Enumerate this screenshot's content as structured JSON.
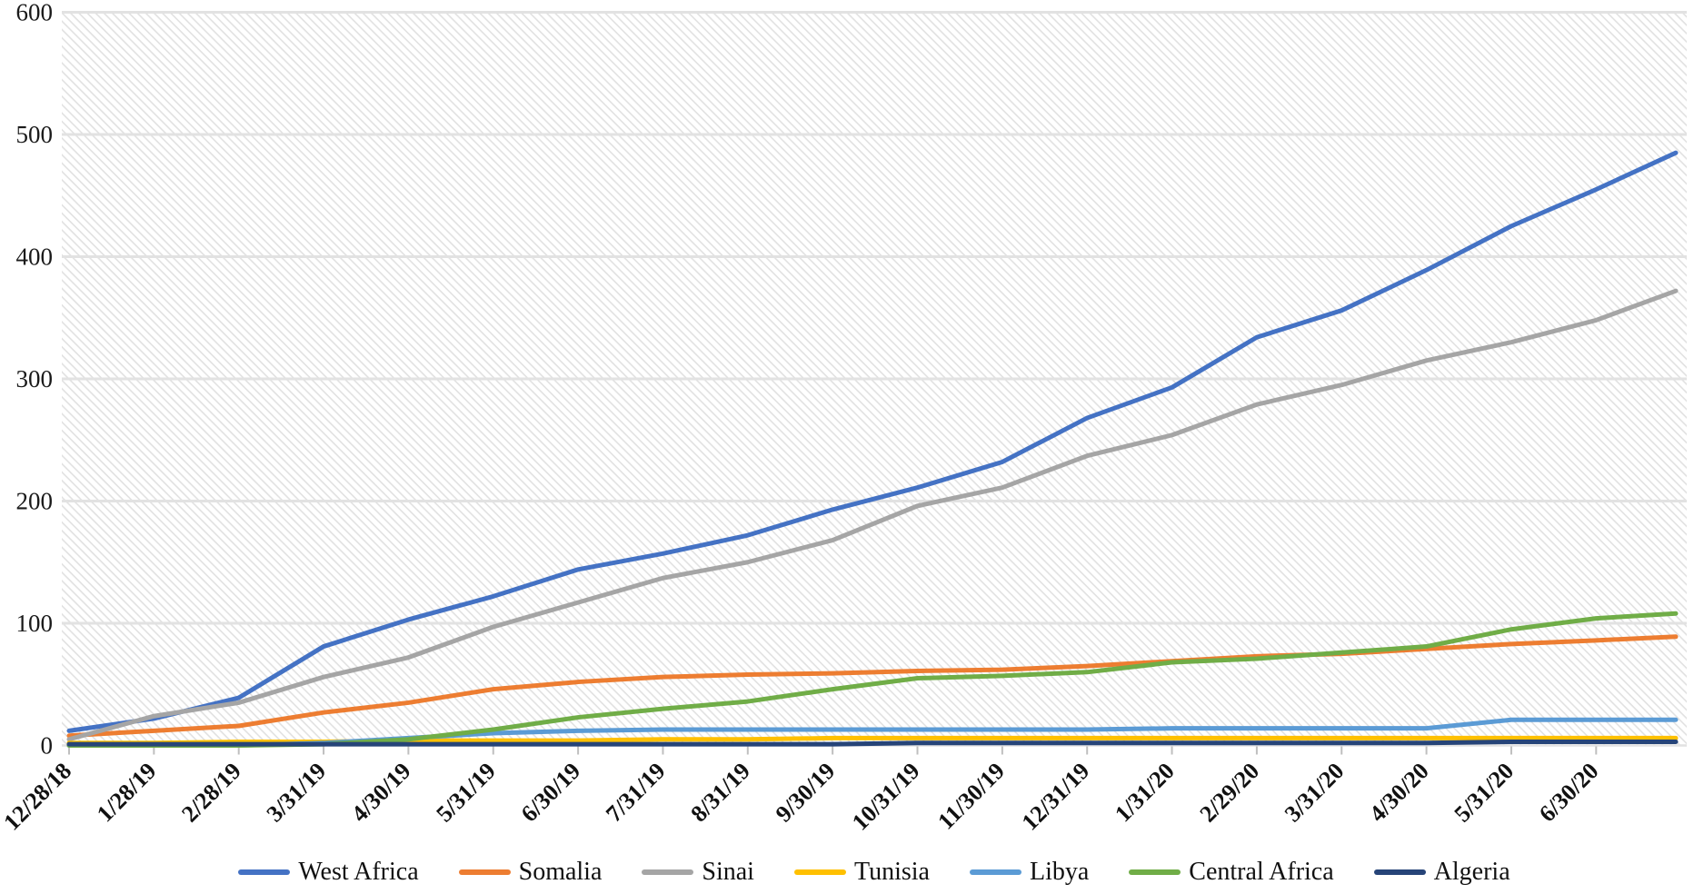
{
  "chart_data": {
    "type": "line",
    "title": "",
    "xlabel": "",
    "ylabel": "",
    "ylim": [
      0,
      600
    ],
    "y_ticks": [
      "0",
      "100",
      "200",
      "300",
      "400",
      "500",
      "600"
    ],
    "grid": "horizontal",
    "plot_background": "light-gray-diagonal-hatch",
    "legend_position": "bottom",
    "x_axis_extends_past_last_label": true,
    "categories": [
      "12/28/18",
      "1/28/19",
      "2/28/19",
      "3/31/19",
      "4/30/19",
      "5/31/19",
      "6/30/19",
      "7/31/19",
      "8/31/19",
      "9/30/19",
      "10/31/19",
      "11/30/19",
      "12/31/19",
      "1/31/20",
      "2/29/20",
      "3/31/20",
      "4/30/20",
      "5/31/20",
      "6/30/20"
    ],
    "series": [
      {
        "name": "West Africa",
        "color": "#4472C4",
        "values": [
          12,
          22,
          39,
          81,
          103,
          122,
          144,
          157,
          172,
          193,
          211,
          232,
          268,
          293,
          334,
          356,
          389,
          425,
          455,
          485
        ]
      },
      {
        "name": "Somalia",
        "color": "#ED7D31",
        "values": [
          8,
          12,
          16,
          27,
          35,
          46,
          52,
          56,
          58,
          59,
          61,
          62,
          65,
          69,
          73,
          75,
          79,
          83,
          86,
          89
        ]
      },
      {
        "name": "Sinai",
        "color": "#A5A5A5",
        "values": [
          5,
          24,
          35,
          56,
          72,
          97,
          117,
          137,
          150,
          168,
          196,
          211,
          237,
          254,
          279,
          295,
          315,
          330,
          348,
          372
        ]
      },
      {
        "name": "Tunisia",
        "color": "#FFC000",
        "values": [
          2,
          2,
          3,
          3,
          4,
          4,
          4,
          5,
          5,
          6,
          6,
          6,
          6,
          6,
          6,
          6,
          6,
          6,
          6,
          6
        ]
      },
      {
        "name": "Libya",
        "color": "#5B9BD5",
        "values": [
          0,
          0,
          0,
          2,
          6,
          10,
          12,
          13,
          13,
          13,
          13,
          13,
          13,
          14,
          14,
          14,
          14,
          21,
          21,
          21
        ]
      },
      {
        "name": "Central Africa",
        "color": "#70AD47",
        "values": [
          0,
          0,
          0,
          1,
          5,
          13,
          23,
          30,
          36,
          46,
          55,
          57,
          60,
          68,
          71,
          76,
          81,
          95,
          104,
          108
        ]
      },
      {
        "name": "Algeria",
        "color": "#264478",
        "values": [
          1,
          1,
          1,
          1,
          1,
          1,
          1,
          1,
          1,
          1,
          2,
          2,
          2,
          2,
          2,
          2,
          2,
          3,
          3,
          3
        ]
      }
    ],
    "colors": {
      "gridline": "#e2e2e2",
      "axis": "#bfbfbf",
      "hatch": "#dcdcdc",
      "background": "#ffffff"
    }
  }
}
